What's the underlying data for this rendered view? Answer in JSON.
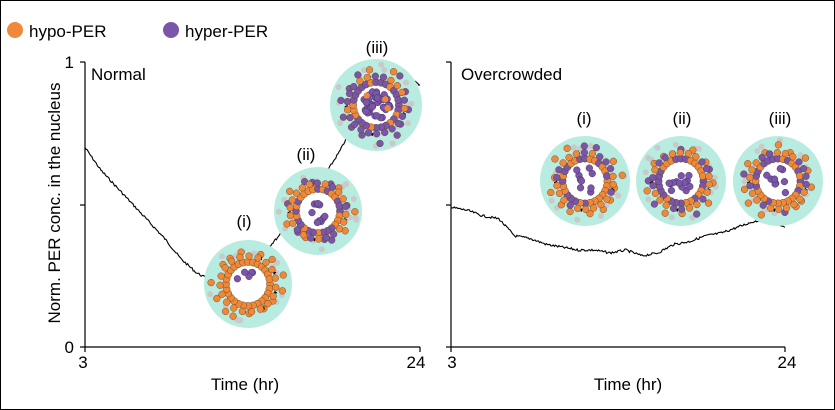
{
  "legend": {
    "hypo_label": "hypo-PER",
    "hyper_label": "hyper-PER",
    "hypo_color": "#f0883a",
    "hyper_color": "#7a55a8"
  },
  "colors": {
    "cytoplasm": "#b8ece0",
    "nucleus": "#ffffff",
    "inactive_per": "#c9c9c9",
    "trace": "#000000"
  },
  "axes": {
    "ylabel": "Norm. PER conc. in the nucleus",
    "y_ticks": [
      "0",
      "1"
    ],
    "xlabel": "Time (hr)",
    "x_ticks": [
      "3",
      "24"
    ]
  },
  "panels": [
    {
      "title": "Normal",
      "cells": [
        {
          "label": "(i)",
          "hypo_ring": 0.85,
          "hyper_ring": 0.0,
          "nucleus_hyper": 5,
          "nucleus_hypo": 0
        },
        {
          "label": "(ii)",
          "hypo_ring": 0.55,
          "hyper_ring": 0.45,
          "nucleus_hyper": 10,
          "nucleus_hypo": 0
        },
        {
          "label": "(iii)",
          "hypo_ring": 0.3,
          "hyper_ring": 0.7,
          "nucleus_hyper": 40,
          "nucleus_hypo": 3
        }
      ]
    },
    {
      "title": "Overcrowded",
      "cells": [
        {
          "label": "(i)",
          "hypo_ring": 0.7,
          "hyper_ring": 0.3,
          "nucleus_hyper": 9,
          "nucleus_hypo": 0
        },
        {
          "label": "(ii)",
          "hypo_ring": 0.6,
          "hyper_ring": 0.4,
          "nucleus_hyper": 13,
          "nucleus_hypo": 0
        },
        {
          "label": "(iii)",
          "hypo_ring": 0.65,
          "hyper_ring": 0.35,
          "nucleus_hyper": 9,
          "nucleus_hypo": 0
        }
      ]
    }
  ],
  "chart_data": [
    {
      "type": "line",
      "title": "Normal",
      "xlabel": "Time (hr)",
      "ylabel": "Norm. PER conc. in the nucleus",
      "xlim": [
        3,
        24
      ],
      "ylim": [
        0,
        1
      ],
      "x": [
        3,
        4,
        5,
        6,
        7,
        8,
        9,
        10,
        11,
        11.5,
        12,
        13,
        14,
        15,
        16,
        17,
        18,
        19,
        20,
        21,
        22,
        23,
        24
      ],
      "y": [
        0.7,
        0.62,
        0.56,
        0.5,
        0.44,
        0.38,
        0.31,
        0.26,
        0.23,
        0.22,
        0.24,
        0.27,
        0.32,
        0.38,
        0.45,
        0.52,
        0.6,
        0.69,
        0.8,
        0.93,
        0.99,
        0.95,
        0.92
      ]
    },
    {
      "type": "line",
      "title": "Overcrowded",
      "xlabel": "Time (hr)",
      "ylabel": "Norm. PER conc. in the nucleus",
      "xlim": [
        3,
        24
      ],
      "ylim": [
        0,
        1
      ],
      "x": [
        3,
        4,
        5,
        6,
        7,
        8,
        9,
        10,
        11,
        12,
        13,
        14,
        15,
        16,
        17,
        18,
        19,
        20,
        21,
        22,
        23,
        24
      ],
      "y": [
        0.49,
        0.48,
        0.46,
        0.45,
        0.39,
        0.38,
        0.36,
        0.35,
        0.34,
        0.34,
        0.33,
        0.34,
        0.32,
        0.33,
        0.36,
        0.37,
        0.39,
        0.4,
        0.42,
        0.44,
        0.45,
        0.42
      ]
    }
  ]
}
